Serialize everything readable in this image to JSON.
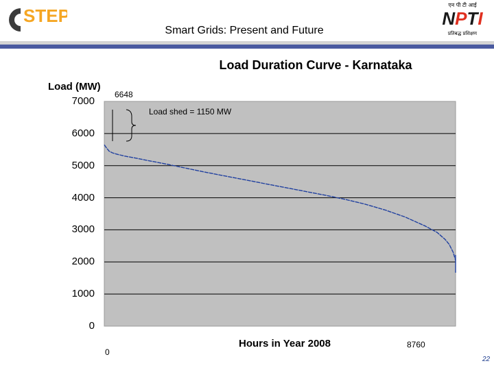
{
  "header": {
    "title": "Smart Grids: Present and Future",
    "left_logo_text": "CSTEP",
    "right_logo_text": "NPTI",
    "right_logo_hindi": "एन पी टी आई",
    "right_logo_motto": "प्रतिबद्ध प्रशिक्षण"
  },
  "chart_data": {
    "type": "line",
    "title": "Load Duration Curve - Karnataka",
    "ylabel": "Load (MW)",
    "xlabel": "Hours in Year 2008",
    "ylim": [
      0,
      7000
    ],
    "xlim": [
      0,
      8760
    ],
    "yticks": [
      0,
      1000,
      2000,
      3000,
      4000,
      5000,
      6000,
      7000
    ],
    "xtick_labels": [
      "0",
      "8760"
    ],
    "grid": true,
    "annotations": {
      "peak": "6648",
      "shed": "Load shed = 1150 MW"
    },
    "series": [
      {
        "x": [
          0,
          50,
          120,
          200,
          300,
          500,
          800,
          1000,
          1500,
          2000,
          2500,
          3000,
          3500,
          4000,
          4500,
          5000,
          5500,
          6000,
          6500,
          7000,
          7500,
          8000,
          8300,
          8500,
          8600,
          8700,
          8760
        ],
        "values": [
          5650,
          5560,
          5450,
          5400,
          5360,
          5300,
          5230,
          5180,
          5060,
          4930,
          4800,
          4680,
          4560,
          4440,
          4320,
          4200,
          4080,
          3950,
          3800,
          3620,
          3400,
          3120,
          2920,
          2700,
          2550,
          2300,
          2050
        ]
      }
    ]
  },
  "page_number": "22",
  "colors": {
    "plot_bg": "#c0c0c0",
    "line": "#1f3f9f",
    "accent_bar": "#4a5aa0"
  }
}
